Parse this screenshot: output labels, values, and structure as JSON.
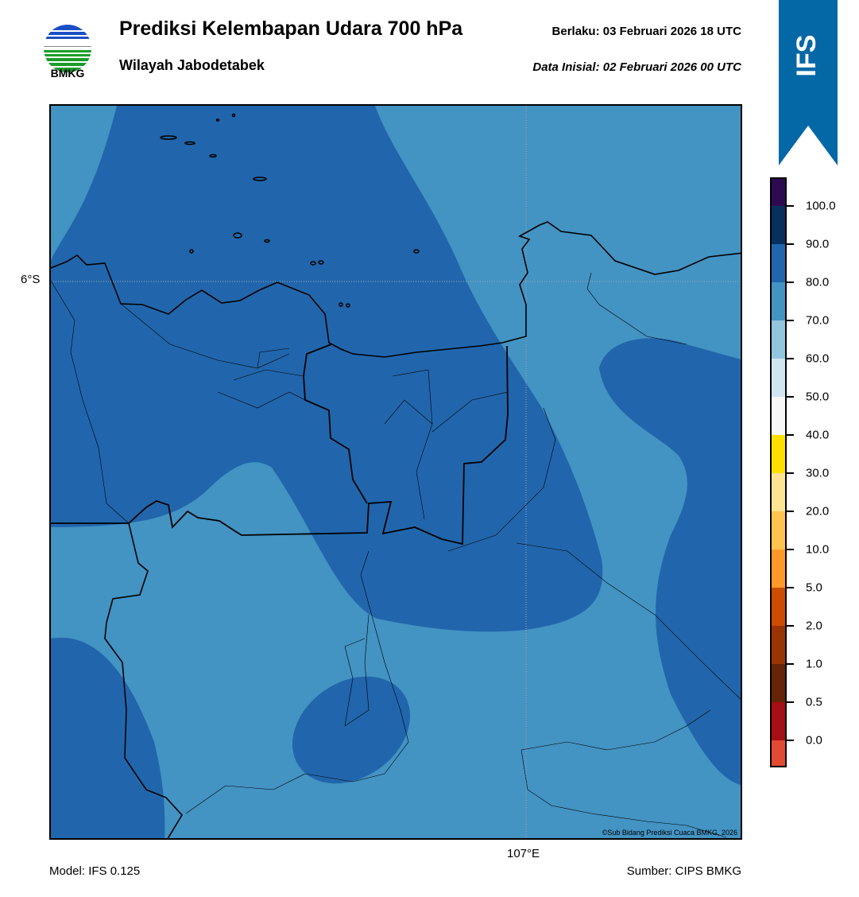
{
  "header": {
    "title": "Prediksi Kelembapan Udara 700 hPa",
    "subtitle": "Wilayah Jabodetabek",
    "valid_time": "Berlaku:  03 Februari 2026 18 UTC",
    "init_time": "Data Inisial:  02 Februari 2026 00 UTC",
    "logo_text": "BMKG",
    "badge": "IFS",
    "badge_color": "#0568a6"
  },
  "map": {
    "lat_label": "6°S",
    "lon_label": "107°E",
    "copyright": "©Sub Bidang Prediksi Cuaca BMKG, 2026",
    "field_colors": {
      "70-80": "#4393c3",
      "80-90": "#2166ac"
    }
  },
  "colorbar": {
    "labels": [
      "100.0",
      "90.0",
      "80.0",
      "70.0",
      "60.0",
      "50.0",
      "40.0",
      "30.0",
      "20.0",
      "10.0",
      "5.0",
      "2.0",
      "1.0",
      "0.5",
      "0.0"
    ],
    "colors": [
      "#2d0b50",
      "#08305e",
      "#2166ac",
      "#4393c3",
      "#92c5de",
      "#d1e5f0",
      "#f7f7f7",
      "#ffdf00",
      "#fee391",
      "#fec44f",
      "#fe9929",
      "#cc4c02",
      "#993404",
      "#662506",
      "#a50f15",
      "#e34a33"
    ]
  },
  "footer": {
    "model": "Model: IFS 0.125",
    "source": "Sumber: CIPS BMKG"
  }
}
